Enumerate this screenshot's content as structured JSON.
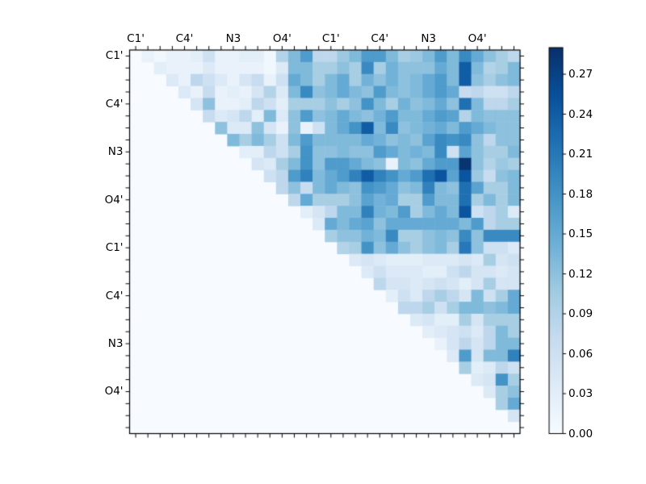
{
  "figure": {
    "background": "#ffffff",
    "kind": "matrix-heatmap-with-colorbar"
  },
  "axes": {
    "top_tick_labels": [
      "C1'",
      "C4'",
      "N3",
      "O4'",
      "C1'",
      "C4'",
      "N3",
      "O4'"
    ],
    "left_tick_labels": [
      "C1'",
      "C4'",
      "N3",
      "O4'",
      "C1'",
      "C4'",
      "N3",
      "O4'"
    ],
    "label_every_n_cells": 4,
    "n_cells": 32,
    "frame_color": "#000000",
    "tick_color": "#000000"
  },
  "colorbar": {
    "tick_labels": [
      "0.27",
      "0.24",
      "0.21",
      "0.18",
      "0.15",
      "0.12",
      "0.09",
      "0.06",
      "0.03",
      "0.00"
    ],
    "tick_values": [
      0.27,
      0.24,
      0.21,
      0.18,
      0.15,
      0.12,
      0.09,
      0.06,
      0.03,
      0.0
    ],
    "vmin": 0.0,
    "vmax": 0.29,
    "colormap": "Blues"
  },
  "chart_data": {
    "type": "heatmap",
    "title": "",
    "xlabel": "",
    "ylabel": "",
    "colormap": "Blues",
    "vmin": 0.0,
    "vmax": 0.29,
    "grid": false,
    "legend_position": "colorbar-right",
    "structure": "upper-triangular matrix, lower triangle and diagonal empty (value 0)",
    "col_labels": [
      "C1'",
      "C4'",
      "N3",
      "O4'",
      "C1'",
      "C4'",
      "N3",
      "O4'"
    ],
    "row_labels": [
      "C1'",
      "C4'",
      "N3",
      "O4'",
      "C1'",
      "C4'",
      "N3",
      "O4'"
    ],
    "matrix": [
      [
        0,
        0.02,
        0.01,
        0.02,
        0.02,
        0.03,
        0.06,
        0.02,
        0.02,
        0.03,
        0.03,
        0.01,
        0.09,
        0.13,
        0.17,
        0.08,
        0.08,
        0.11,
        0.13,
        0.17,
        0.17,
        0.13,
        0.1,
        0.11,
        0.13,
        0.17,
        0.13,
        0.19,
        0.15,
        0.12,
        0.1,
        0.08
      ],
      [
        0,
        0,
        0.03,
        0.02,
        0.02,
        0.02,
        0.04,
        0.02,
        0.02,
        0.02,
        0.02,
        0.01,
        0.04,
        0.13,
        0.13,
        0.1,
        0.1,
        0.12,
        0.1,
        0.19,
        0.1,
        0.14,
        0.12,
        0.12,
        0.12,
        0.15,
        0.13,
        0.24,
        0.13,
        0.09,
        0.1,
        0.13
      ],
      [
        0,
        0,
        0,
        0.04,
        0.02,
        0.08,
        0.06,
        0.04,
        0.02,
        0.05,
        0.07,
        0.02,
        0.06,
        0.15,
        0.13,
        0.1,
        0.13,
        0.15,
        0.1,
        0.14,
        0.12,
        0.14,
        0.12,
        0.13,
        0.15,
        0.17,
        0.13,
        0.24,
        0.12,
        0.1,
        0.12,
        0.13
      ],
      [
        0,
        0,
        0,
        0,
        0.04,
        0.02,
        0.07,
        0.02,
        0.03,
        0.02,
        0.05,
        0.09,
        0.04,
        0.13,
        0.19,
        0.12,
        0.13,
        0.15,
        0.13,
        0.12,
        0.17,
        0.13,
        0.12,
        0.13,
        0.15,
        0.17,
        0.15,
        0.07,
        0.08,
        0.06,
        0.06,
        0.08
      ],
      [
        0,
        0,
        0,
        0,
        0,
        0.05,
        0.12,
        0.02,
        0.02,
        0.03,
        0.08,
        0.06,
        0.03,
        0.1,
        0.1,
        0.1,
        0.12,
        0.1,
        0.12,
        0.18,
        0.13,
        0.1,
        0.14,
        0.12,
        0.13,
        0.15,
        0.12,
        0.22,
        0.13,
        0.08,
        0.08,
        0.1
      ],
      [
        0,
        0,
        0,
        0,
        0,
        0,
        0.07,
        0.04,
        0.05,
        0.08,
        0.03,
        0.13,
        0.04,
        0.12,
        0.17,
        0.12,
        0.13,
        0.15,
        0.13,
        0.12,
        0.14,
        0.17,
        0.13,
        0.13,
        0.15,
        0.17,
        0.16,
        0.09,
        0.13,
        0.12,
        0.12,
        0.12
      ],
      [
        0,
        0,
        0,
        0,
        0,
        0,
        0,
        0.12,
        0.04,
        0.04,
        0.12,
        0.05,
        0.02,
        0.12,
        0.02,
        0.06,
        0.13,
        0.15,
        0.18,
        0.24,
        0.13,
        0.19,
        0.12,
        0.13,
        0.14,
        0.15,
        0.13,
        0.17,
        0.15,
        0.13,
        0.12,
        0.12
      ],
      [
        0,
        0,
        0,
        0,
        0,
        0,
        0,
        0,
        0.13,
        0.1,
        0.13,
        0.1,
        0.06,
        0.13,
        0.17,
        0.13,
        0.13,
        0.13,
        0.13,
        0.15,
        0.14,
        0.12,
        0.13,
        0.12,
        0.16,
        0.19,
        0.18,
        0.19,
        0.12,
        0.08,
        0.12,
        0.12
      ],
      [
        0,
        0,
        0,
        0,
        0,
        0,
        0,
        0,
        0,
        0.03,
        0.03,
        0.08,
        0.06,
        0.1,
        0.18,
        0.12,
        0.12,
        0.13,
        0.12,
        0.12,
        0.17,
        0.15,
        0.13,
        0.14,
        0.13,
        0.19,
        0.06,
        0.16,
        0.12,
        0.1,
        0.1,
        0.13
      ],
      [
        0,
        0,
        0,
        0,
        0,
        0,
        0,
        0,
        0,
        0,
        0.05,
        0.04,
        0.1,
        0.13,
        0.18,
        0.12,
        0.17,
        0.17,
        0.15,
        0.13,
        0.12,
        0.02,
        0.13,
        0.12,
        0.15,
        0.17,
        0.17,
        0.285,
        0.12,
        0.09,
        0.11,
        0.1
      ],
      [
        0,
        0,
        0,
        0,
        0,
        0,
        0,
        0,
        0,
        0,
        0,
        0.06,
        0.08,
        0.17,
        0.2,
        0.13,
        0.15,
        0.17,
        0.2,
        0.24,
        0.2,
        0.18,
        0.15,
        0.17,
        0.22,
        0.25,
        0.16,
        0.25,
        0.11,
        0.07,
        0.12,
        0.13
      ],
      [
        0,
        0,
        0,
        0,
        0,
        0,
        0,
        0,
        0,
        0,
        0,
        0,
        0.08,
        0.12,
        0.07,
        0.13,
        0.15,
        0.13,
        0.12,
        0.18,
        0.17,
        0.15,
        0.12,
        0.13,
        0.2,
        0.13,
        0.12,
        0.22,
        0.16,
        0.1,
        0.1,
        0.13
      ],
      [
        0,
        0,
        0,
        0,
        0,
        0,
        0,
        0,
        0,
        0,
        0,
        0,
        0,
        0.08,
        0.15,
        0.1,
        0.1,
        0.1,
        0.12,
        0.16,
        0.14,
        0.15,
        0.1,
        0.1,
        0.17,
        0.13,
        0.13,
        0.22,
        0.1,
        0.13,
        0.1,
        0.13
      ],
      [
        0,
        0,
        0,
        0,
        0,
        0,
        0,
        0,
        0,
        0,
        0,
        0,
        0,
        0,
        0.03,
        0.05,
        0.08,
        0.13,
        0.13,
        0.2,
        0.14,
        0.13,
        0.17,
        0.1,
        0.13,
        0.15,
        0.13,
        0.25,
        0.06,
        0.08,
        0.1,
        0.04
      ],
      [
        0,
        0,
        0,
        0,
        0,
        0,
        0,
        0,
        0,
        0,
        0,
        0,
        0,
        0,
        0,
        0.04,
        0.15,
        0.13,
        0.15,
        0.16,
        0.12,
        0.15,
        0.15,
        0.15,
        0.15,
        0.15,
        0.15,
        0.13,
        0.17,
        0.08,
        0.1,
        0.1
      ],
      [
        0,
        0,
        0,
        0,
        0,
        0,
        0,
        0,
        0,
        0,
        0,
        0,
        0,
        0,
        0,
        0,
        0.1,
        0.12,
        0.12,
        0.14,
        0.13,
        0.19,
        0.1,
        0.1,
        0.12,
        0.13,
        0.12,
        0.19,
        0.12,
        0.19,
        0.19,
        0.19
      ],
      [
        0,
        0,
        0,
        0,
        0,
        0,
        0,
        0,
        0,
        0,
        0,
        0,
        0,
        0,
        0,
        0,
        0,
        0.09,
        0.1,
        0.18,
        0.12,
        0.15,
        0.12,
        0.1,
        0.12,
        0.13,
        0.1,
        0.21,
        0.12,
        0.06,
        0.06,
        0.04
      ],
      [
        0,
        0,
        0,
        0,
        0,
        0,
        0,
        0,
        0,
        0,
        0,
        0,
        0,
        0,
        0,
        0,
        0,
        0,
        0.04,
        0.05,
        0.04,
        0.03,
        0.03,
        0.03,
        0.04,
        0.04,
        0.04,
        0.05,
        0.04,
        0.1,
        0.05,
        0.06
      ],
      [
        0,
        0,
        0,
        0,
        0,
        0,
        0,
        0,
        0,
        0,
        0,
        0,
        0,
        0,
        0,
        0,
        0,
        0,
        0,
        0.04,
        0.06,
        0.04,
        0.04,
        0.04,
        0.03,
        0.03,
        0.06,
        0.08,
        0.05,
        0.05,
        0.04,
        0.05
      ],
      [
        0,
        0,
        0,
        0,
        0,
        0,
        0,
        0,
        0,
        0,
        0,
        0,
        0,
        0,
        0,
        0,
        0,
        0,
        0,
        0,
        0.08,
        0.05,
        0.05,
        0.04,
        0.05,
        0.06,
        0.05,
        0.03,
        0.05,
        0.1,
        0.05,
        0.05
      ],
      [
        0,
        0,
        0,
        0,
        0,
        0,
        0,
        0,
        0,
        0,
        0,
        0,
        0,
        0,
        0,
        0,
        0,
        0,
        0,
        0,
        0,
        0.03,
        0.06,
        0.04,
        0.08,
        0.1,
        0.08,
        0.05,
        0.13,
        0.06,
        0.1,
        0.15
      ],
      [
        0,
        0,
        0,
        0,
        0,
        0,
        0,
        0,
        0,
        0,
        0,
        0,
        0,
        0,
        0,
        0,
        0,
        0,
        0,
        0,
        0,
        0,
        0.08,
        0.08,
        0.1,
        0.06,
        0.1,
        0.13,
        0.13,
        0.12,
        0.13,
        0.15
      ],
      [
        0,
        0,
        0,
        0,
        0,
        0,
        0,
        0,
        0,
        0,
        0,
        0,
        0,
        0,
        0,
        0,
        0,
        0,
        0,
        0,
        0,
        0,
        0,
        0.04,
        0.05,
        0.03,
        0.03,
        0.1,
        0.05,
        0.1,
        0.1,
        0.1
      ],
      [
        0,
        0,
        0,
        0,
        0,
        0,
        0,
        0,
        0,
        0,
        0,
        0,
        0,
        0,
        0,
        0,
        0,
        0,
        0,
        0,
        0,
        0,
        0,
        0,
        0.03,
        0.04,
        0.05,
        0.06,
        0.04,
        0.08,
        0.13,
        0.1
      ],
      [
        0,
        0,
        0,
        0,
        0,
        0,
        0,
        0,
        0,
        0,
        0,
        0,
        0,
        0,
        0,
        0,
        0,
        0,
        0,
        0,
        0,
        0,
        0,
        0,
        0,
        0.02,
        0.05,
        0.08,
        0.05,
        0.08,
        0.13,
        0.13
      ],
      [
        0,
        0,
        0,
        0,
        0,
        0,
        0,
        0,
        0,
        0,
        0,
        0,
        0,
        0,
        0,
        0,
        0,
        0,
        0,
        0,
        0,
        0,
        0,
        0,
        0,
        0,
        0.04,
        0.17,
        0.05,
        0.13,
        0.13,
        0.2
      ],
      [
        0,
        0,
        0,
        0,
        0,
        0,
        0,
        0,
        0,
        0,
        0,
        0,
        0,
        0,
        0,
        0,
        0,
        0,
        0,
        0,
        0,
        0,
        0,
        0,
        0,
        0,
        0,
        0.1,
        0.03,
        0.04,
        0.08,
        0.06
      ],
      [
        0,
        0,
        0,
        0,
        0,
        0,
        0,
        0,
        0,
        0,
        0,
        0,
        0,
        0,
        0,
        0,
        0,
        0,
        0,
        0,
        0,
        0,
        0,
        0,
        0,
        0,
        0,
        0,
        0.04,
        0.05,
        0.18,
        0.1
      ],
      [
        0,
        0,
        0,
        0,
        0,
        0,
        0,
        0,
        0,
        0,
        0,
        0,
        0,
        0,
        0,
        0,
        0,
        0,
        0,
        0,
        0,
        0,
        0,
        0,
        0,
        0,
        0,
        0,
        0,
        0.04,
        0.1,
        0.12
      ],
      [
        0,
        0,
        0,
        0,
        0,
        0,
        0,
        0,
        0,
        0,
        0,
        0,
        0,
        0,
        0,
        0,
        0,
        0,
        0,
        0,
        0,
        0,
        0,
        0,
        0,
        0,
        0,
        0,
        0,
        0,
        0.1,
        0.15
      ],
      [
        0,
        0,
        0,
        0,
        0,
        0,
        0,
        0,
        0,
        0,
        0,
        0,
        0,
        0,
        0,
        0,
        0,
        0,
        0,
        0,
        0,
        0,
        0,
        0,
        0,
        0,
        0,
        0,
        0,
        0,
        0,
        0.05
      ],
      [
        0,
        0,
        0,
        0,
        0,
        0,
        0,
        0,
        0,
        0,
        0,
        0,
        0,
        0,
        0,
        0,
        0,
        0,
        0,
        0,
        0,
        0,
        0,
        0,
        0,
        0,
        0,
        0,
        0,
        0,
        0,
        0
      ]
    ],
    "colorbar_tick_labels": [
      "0.00",
      "0.03",
      "0.06",
      "0.09",
      "0.12",
      "0.15",
      "0.18",
      "0.21",
      "0.24",
      "0.27"
    ]
  }
}
